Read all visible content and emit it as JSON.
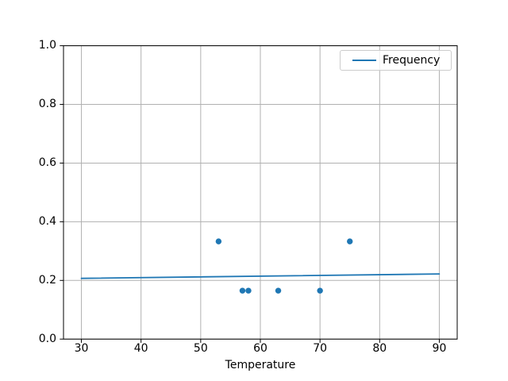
{
  "figure": {
    "background": "#ffffff"
  },
  "chart_data": {
    "type": "scatter",
    "title": "",
    "xlabel": "Temperature",
    "ylabel": "",
    "xlim": [
      27,
      93
    ],
    "ylim": [
      0.0,
      1.0
    ],
    "x_ticks": [
      30,
      40,
      50,
      60,
      70,
      80,
      90
    ],
    "x_tick_labels": [
      "30",
      "40",
      "50",
      "60",
      "70",
      "80",
      "90"
    ],
    "y_ticks": [
      0.0,
      0.2,
      0.4,
      0.6,
      0.8,
      1.0
    ],
    "y_tick_labels": [
      "0.0",
      "0.2",
      "0.4",
      "0.6",
      "0.8",
      "1.0"
    ],
    "grid": true,
    "grid_color": "#b0b0b0",
    "axis_color": "#000000",
    "series": [
      {
        "name": "frequency-fit-line",
        "type": "line",
        "color": "#1f77b4",
        "x": [
          30,
          90
        ],
        "y": [
          0.207,
          0.222
        ]
      },
      {
        "name": "frequency-scatter-points",
        "type": "scatter",
        "color": "#1f77b4",
        "x": [
          53,
          57,
          58,
          63,
          70,
          75
        ],
        "y": [
          0.333,
          0.165,
          0.165,
          0.165,
          0.165,
          0.333
        ]
      }
    ],
    "legend": {
      "position": "upper right",
      "entries": [
        {
          "label": "Frequency",
          "color": "#1f77b4",
          "marker": "line"
        }
      ]
    }
  }
}
